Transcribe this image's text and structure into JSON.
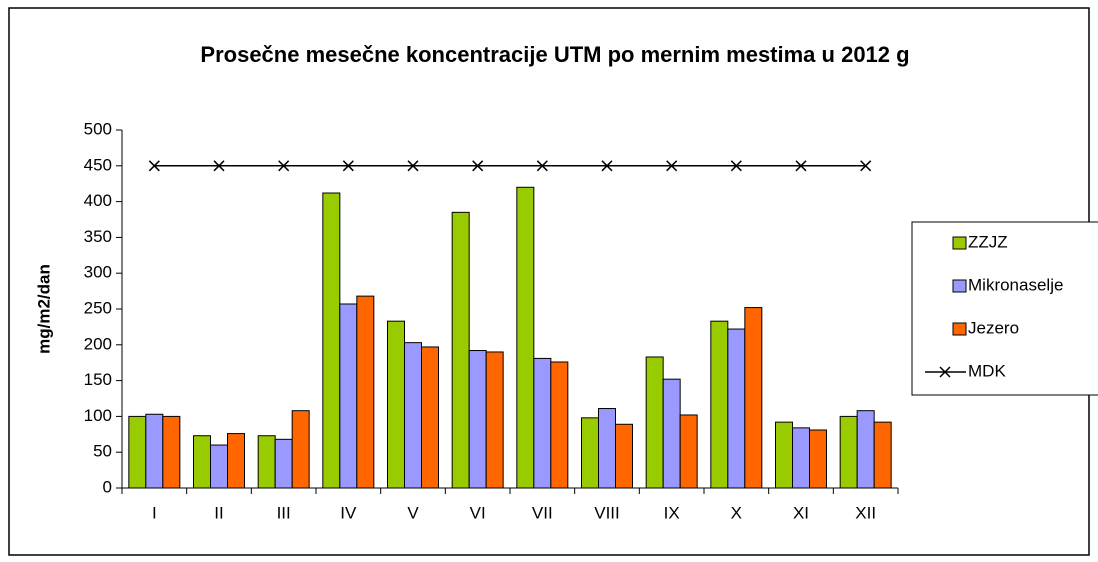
{
  "chart_data": {
    "type": "bar",
    "title": "Prosečne mesečne koncentracije UTM po mernim mestima u 2012 g",
    "y_label": "mg/m2/dan",
    "categories": [
      "I",
      "II",
      "III",
      "IV",
      "V",
      "VI",
      "VII",
      "VIII",
      "IX",
      "X",
      "XI",
      "XII"
    ],
    "series": [
      {
        "name": "ZZJZ",
        "color": "#99cc00",
        "values": [
          100,
          73,
          73,
          412,
          233,
          385,
          420,
          98,
          183,
          233,
          92,
          100
        ]
      },
      {
        "name": "Mikronaselje",
        "color": "#9999ff",
        "values": [
          103,
          60,
          68,
          257,
          203,
          192,
          181,
          111,
          152,
          222,
          84,
          108
        ]
      },
      {
        "name": "Jezero",
        "color": "#ff6600",
        "values": [
          100,
          76,
          108,
          268,
          197,
          190,
          176,
          89,
          102,
          252,
          81,
          92
        ]
      },
      {
        "name": "MDK",
        "type": "line",
        "color": "#000000",
        "values": [
          450,
          450,
          450,
          450,
          450,
          450,
          450,
          450,
          450,
          450,
          450,
          450
        ]
      }
    ],
    "ylim": [
      0,
      500
    ],
    "yticks": [
      0,
      50,
      100,
      150,
      200,
      250,
      300,
      350,
      400,
      450,
      500
    ],
    "grid": false,
    "legend": "right"
  }
}
